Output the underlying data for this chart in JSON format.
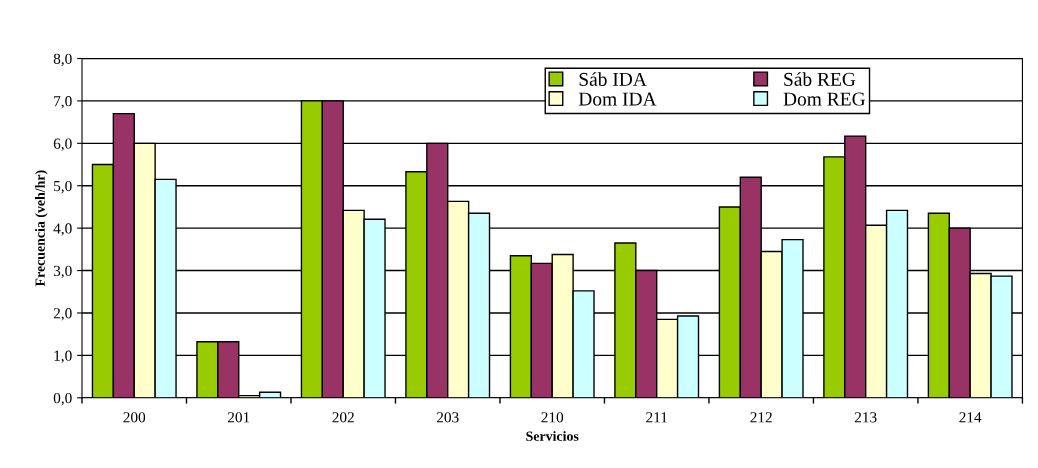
{
  "chart_data": {
    "type": "bar",
    "xlabel": "Servicios",
    "ylabel": "Frecuencia (veh/hr)",
    "categories": [
      "200",
      "201",
      "202",
      "203",
      "210",
      "211",
      "212",
      "213",
      "214"
    ],
    "series": [
      {
        "name": "Sáb IDA",
        "color": "#99cc00",
        "values": [
          5.5,
          1.32,
          7.0,
          5.33,
          3.35,
          3.65,
          4.5,
          5.68,
          4.35
        ]
      },
      {
        "name": "Sáb REG",
        "color": "#993366",
        "values": [
          6.7,
          1.32,
          7.0,
          6.0,
          3.17,
          3.0,
          5.2,
          6.17,
          4.0
        ]
      },
      {
        "name": "Dom IDA",
        "color": "#ffffcc",
        "values": [
          6.0,
          0.05,
          4.42,
          4.63,
          3.38,
          1.85,
          3.45,
          4.07,
          2.93
        ]
      },
      {
        "name": "Dom REG",
        "color": "#ccffff",
        "values": [
          5.15,
          0.13,
          4.21,
          4.35,
          2.52,
          1.93,
          3.73,
          4.42,
          2.87
        ]
      }
    ],
    "ylim": [
      0,
      8
    ],
    "yticks": [
      {
        "value": 0,
        "label": "0,0"
      },
      {
        "value": 1,
        "label": "1,0"
      },
      {
        "value": 2,
        "label": "2,0"
      },
      {
        "value": 3,
        "label": "3,0"
      },
      {
        "value": 4,
        "label": "4,0"
      },
      {
        "value": 5,
        "label": "5,0"
      },
      {
        "value": 6,
        "label": "6,0"
      },
      {
        "value": 7,
        "label": "7,0"
      },
      {
        "value": 8,
        "label": "8,0"
      }
    ],
    "grid": "y",
    "legend": "top"
  }
}
